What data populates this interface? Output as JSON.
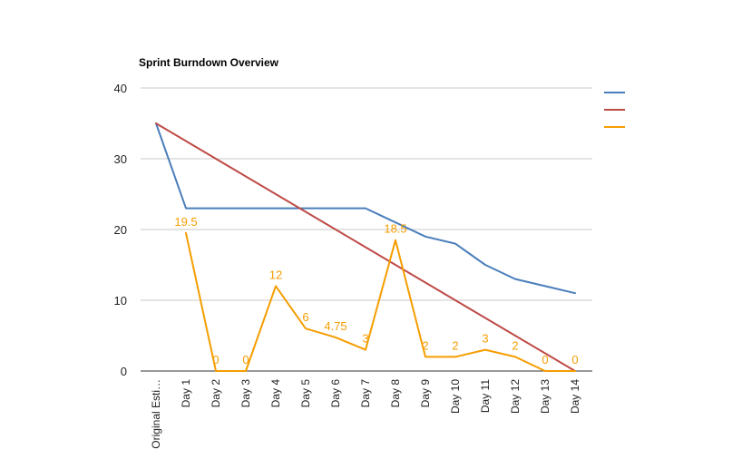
{
  "chart_data": {
    "type": "line",
    "title": "Sprint Burndown Overview",
    "categories": [
      "Original Esti…",
      "Day 1",
      "Day 2",
      "Day 3",
      "Day 4",
      "Day 5",
      "Day 6",
      "Day 7",
      "Day 8",
      "Day 9",
      "Day 10",
      "Day 11",
      "Day 12",
      "Day 13",
      "Day 14"
    ],
    "ylim": [
      0,
      40
    ],
    "yticks": [
      0,
      10,
      20,
      30,
      40
    ],
    "grid": true,
    "legend_position": "right",
    "series": [
      {
        "color": "#4a7ebb",
        "values": [
          35,
          23,
          23,
          23,
          23,
          23,
          23,
          23,
          21,
          19,
          18,
          15,
          13,
          12,
          11
        ]
      },
      {
        "color": "#be4b48",
        "values": [
          35,
          32.5,
          30,
          27.5,
          25,
          22.5,
          20,
          17.5,
          15,
          12.5,
          10,
          7.5,
          5,
          2.5,
          0
        ]
      },
      {
        "color": "#f59d00",
        "values": [
          null,
          19.5,
          0,
          0,
          12,
          6,
          4.75,
          3,
          18.5,
          2,
          2,
          3,
          2,
          0,
          0
        ],
        "data_labels": [
          "",
          "19.5",
          "0",
          "0",
          "12",
          "6",
          "4.75",
          "3",
          "18.5",
          "2",
          "2",
          "3",
          "2",
          "0",
          "0"
        ]
      }
    ]
  }
}
